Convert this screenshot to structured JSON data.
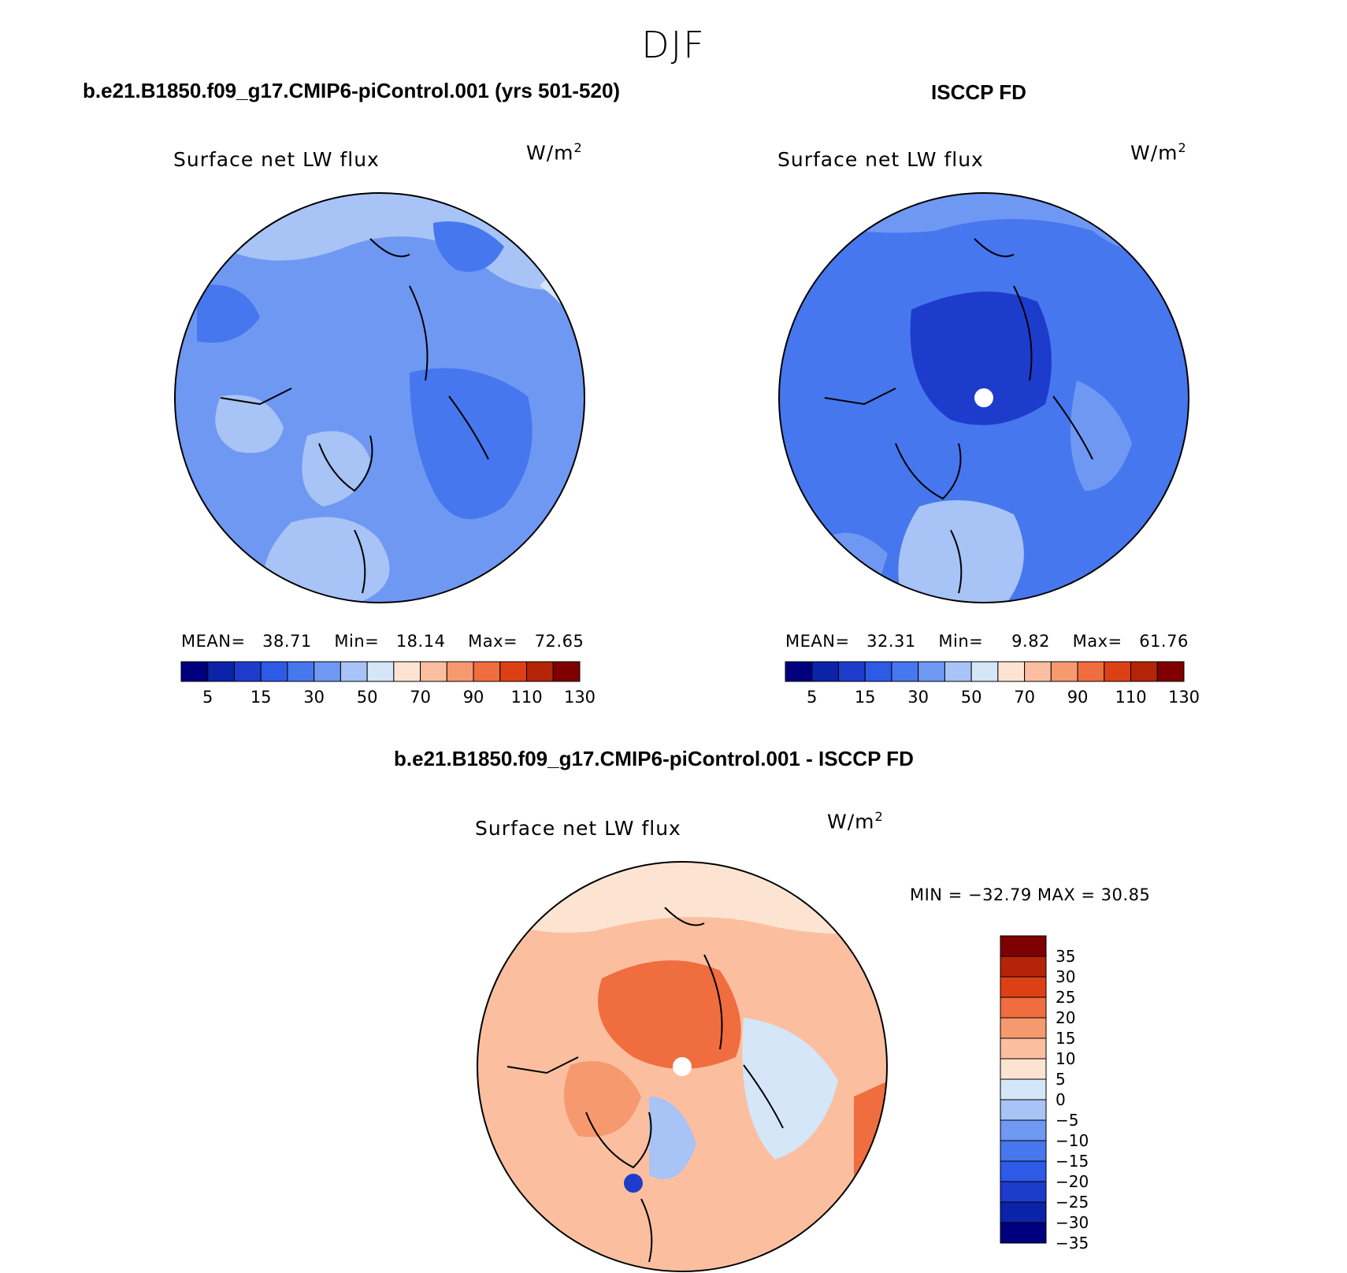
{
  "season": "DJF",
  "panels": {
    "model": {
      "heading": "b.e21.B1850.f09_g17.CMIP6-piControl.001 (yrs 501-520)",
      "title": "Surface net LW flux",
      "units": "W/m",
      "units_sup": "2",
      "mean_label": "MEAN=",
      "mean": "38.71",
      "min_label": "Min=",
      "min": "18.14",
      "max_label": "Max=",
      "max": "72.65"
    },
    "obs": {
      "heading": "ISCCP FD",
      "title": "Surface net LW flux",
      "units": "W/m",
      "units_sup": "2",
      "mean_label": "MEAN=",
      "mean": "32.31",
      "min_label": "Min=",
      "min": "9.82",
      "max_label": "Max=",
      "max": "61.76"
    },
    "diff": {
      "heading": "b.e21.B1850.f09_g17.CMIP6-piControl.001 - ISCCP FD",
      "title": "Surface net LW flux",
      "units": "W/m",
      "units_sup": "2",
      "minmax": "MIN = −32.79 MAX =  30.85"
    }
  },
  "colorbar_abs": {
    "colors": [
      "#00007f",
      "#0a23a8",
      "#1e3ccc",
      "#2d5ae6",
      "#4677ee",
      "#6e98f2",
      "#a8c3f5",
      "#d4e6f8",
      "#fde4d2",
      "#fbbfa0",
      "#f7996f",
      "#ef6d3e",
      "#de4016",
      "#b52408",
      "#7f0000"
    ],
    "ticks": [
      "5",
      "15",
      "30",
      "50",
      "70",
      "90",
      "110",
      "130"
    ]
  },
  "colorbar_diff": {
    "colors": [
      "#7f0000",
      "#b52408",
      "#de4016",
      "#ef6d3e",
      "#f7996f",
      "#fbbfa0",
      "#fde4d2",
      "#d4e6f8",
      "#a8c3f5",
      "#6e98f2",
      "#4677ee",
      "#2d5ae6",
      "#1e3ccc",
      "#0a23a8",
      "#00007f"
    ],
    "ticks": [
      "35",
      "30",
      "25",
      "20",
      "15",
      "10",
      "5",
      "0",
      "−5",
      "−10",
      "−15",
      "−20",
      "−25",
      "−30",
      "−35"
    ]
  },
  "map_colors": {
    "model_base": "#6e98f2",
    "obs_base": "#4677ee",
    "diff_base": "#fbbfa0",
    "pole_hole": "#ffffff",
    "coast": "#000000"
  }
}
